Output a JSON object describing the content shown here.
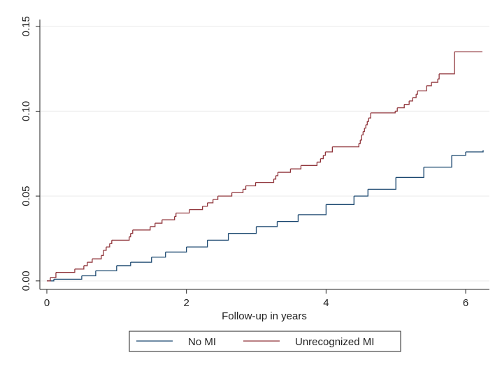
{
  "chart_data": {
    "type": "line",
    "step": "post",
    "grid": true,
    "legend": "bottom",
    "xlabel": "Follow-up in years",
    "xlim": [
      -0.1,
      6.34
    ],
    "xticks": [
      0,
      2,
      4,
      6
    ],
    "ylim": [
      -0.005,
      0.154
    ],
    "yticks": [
      {
        "value": 0,
        "label": "0.00"
      },
      0.05,
      {
        "value": 0.1,
        "label": "0.10"
      },
      0.15
    ],
    "series": [
      {
        "name": "No MI",
        "color": "#1a476f",
        "x": [
          0,
          0.1,
          0.5,
          0.7,
          1.0,
          1.2,
          1.5,
          1.7,
          2.0,
          2.3,
          2.6,
          3.0,
          3.3,
          3.6,
          4.0,
          4.4,
          4.6,
          5.0,
          5.4,
          5.8,
          6.0,
          6.25
        ],
        "values": [
          0,
          0.001,
          0.003,
          0.006,
          0.009,
          0.011,
          0.014,
          0.017,
          0.02,
          0.024,
          0.028,
          0.032,
          0.035,
          0.039,
          0.045,
          0.05,
          0.054,
          0.061,
          0.067,
          0.074,
          0.076,
          0.077
        ]
      },
      {
        "name": "Unrecognized MI",
        "color": "#90353b",
        "x": [
          0,
          0.05,
          0.13,
          0.4,
          0.53,
          0.58,
          0.65,
          0.78,
          0.81,
          0.85,
          0.9,
          0.93,
          1.18,
          1.2,
          1.23,
          1.48,
          1.55,
          1.65,
          1.83,
          1.85,
          2.04,
          2.23,
          2.3,
          2.38,
          2.45,
          2.65,
          2.81,
          2.85,
          2.99,
          3.25,
          3.28,
          3.31,
          3.49,
          3.64,
          3.87,
          3.92,
          3.96,
          3.99,
          4.09,
          4.47,
          4.49,
          4.51,
          4.53,
          4.55,
          4.57,
          4.59,
          4.61,
          4.64,
          4.99,
          5.02,
          5.12,
          5.19,
          5.24,
          5.29,
          5.31,
          5.44,
          5.51,
          5.6,
          5.62,
          5.84,
          6.24
        ],
        "values": [
          0,
          0.002,
          0.005,
          0.007,
          0.009,
          0.011,
          0.013,
          0.015,
          0.018,
          0.02,
          0.022,
          0.024,
          0.026,
          0.028,
          0.03,
          0.032,
          0.034,
          0.036,
          0.038,
          0.04,
          0.042,
          0.044,
          0.046,
          0.048,
          0.05,
          0.052,
          0.054,
          0.056,
          0.058,
          0.06,
          0.062,
          0.064,
          0.066,
          0.068,
          0.07,
          0.072,
          0.074,
          0.076,
          0.079,
          0.081,
          0.083,
          0.086,
          0.088,
          0.09,
          0.092,
          0.094,
          0.096,
          0.099,
          0.1,
          0.102,
          0.104,
          0.106,
          0.108,
          0.11,
          0.112,
          0.115,
          0.117,
          0.119,
          0.122,
          0.135,
          0.135
        ]
      }
    ]
  }
}
